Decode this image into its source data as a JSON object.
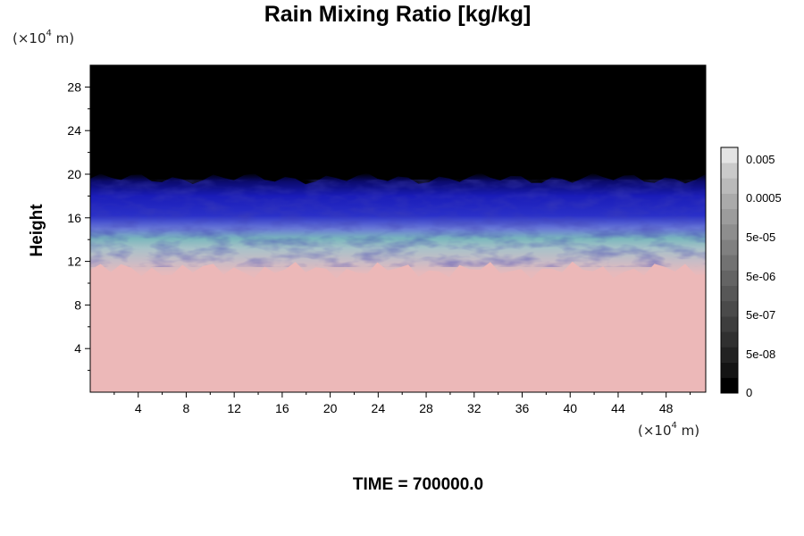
{
  "chart_data": {
    "type": "heatmap",
    "title": "Rain Mixing Ratio [kg/kg]",
    "ylabel": "Height",
    "y_unit_prefix": "(×10",
    "y_unit_exp": "4",
    "y_unit_suffix": " m)",
    "x_unit_prefix": "(×10",
    "x_unit_exp": "4",
    "x_unit_suffix": " m)",
    "xlim": [
      0,
      51.3
    ],
    "ylim": [
      0,
      30
    ],
    "x_ticks": [
      4,
      8,
      12,
      16,
      20,
      24,
      28,
      32,
      36,
      40,
      44,
      48
    ],
    "y_ticks": [
      4,
      8,
      12,
      16,
      20,
      24,
      28
    ],
    "footer": "TIME = 700000.0",
    "colorbar": {
      "labels": [
        "0",
        "5e-08",
        "5e-07",
        "5e-06",
        "5e-05",
        "0.0005",
        "0.005"
      ],
      "num_levels": 16,
      "colors": [
        "#000000",
        "#141414",
        "#222222",
        "#303030",
        "#3d3d3d",
        "#4a4a4a",
        "#575757",
        "#646464",
        "#727272",
        "#808080",
        "#8e8e8e",
        "#9c9c9c",
        "#aaaaaa",
        "#bababa",
        "#cacaca",
        "#e4e4e4"
      ]
    },
    "regions": [
      {
        "name": "lower-layer",
        "y_range": [
          0,
          11
        ],
        "color": "#ecb8b8"
      },
      {
        "name": "mixed-layer",
        "y_range": [
          11,
          14
        ],
        "color": "#b6c2cc"
      },
      {
        "name": "teal-band",
        "y_range": [
          13,
          15
        ],
        "color": "#7ab4b8"
      },
      {
        "name": "blue-band",
        "y_range": [
          15,
          19.5
        ],
        "color": "#1a22c0"
      },
      {
        "name": "upper-layer",
        "y_range": [
          19.5,
          30
        ],
        "color": "#000000"
      }
    ]
  }
}
